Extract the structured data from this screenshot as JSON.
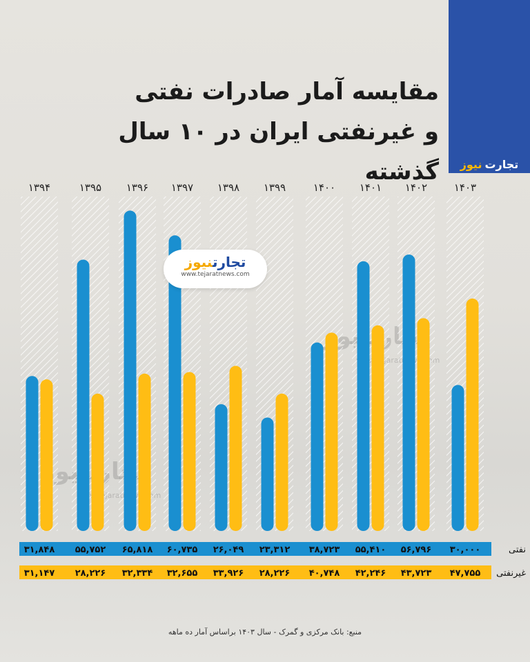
{
  "title_line1": "مقایسه آمار صادرات نفتی",
  "title_line2": "و غیرنفتی ایران در ۱۰ سال گذشته",
  "brand": {
    "part1": "تجارت",
    "part2": "نیوز",
    "url": "www.tejaratnews.com",
    "primary": "#2a52a8",
    "accent": "#ffb800"
  },
  "source": "منبع: بانک مرکزی و گمرک - سال ۱۴۰۳ براساس آمار ده ماهه",
  "chart_data": {
    "type": "bar",
    "categories": [
      "۱۳۹۴",
      "۱۳۹۵",
      "۱۳۹۶",
      "۱۳۹۷",
      "۱۳۹۸",
      "۱۳۹۹",
      "۱۴۰۰",
      "۱۴۰۱",
      "۱۴۰۲",
      "۱۴۰۳"
    ],
    "series": [
      {
        "name": "نفتی",
        "color": "#1a8fd0",
        "values": [
          31848,
          55752,
          65818,
          60735,
          26049,
          23312,
          38723,
          55410,
          56796,
          30000
        ],
        "labels": [
          "۳۱,۸۴۸",
          "۵۵,۷۵۲",
          "۶۵,۸۱۸",
          "۶۰,۷۳۵",
          "۲۶,۰۴۹",
          "۲۳,۳۱۲",
          "۳۸,۷۲۳",
          "۵۵,۴۱۰",
          "۵۶,۷۹۶",
          "۳۰,۰۰۰"
        ]
      },
      {
        "name": "غیرنفتی",
        "color": "#ffbd14",
        "values": [
          31147,
          28226,
          32334,
          32655,
          33926,
          28226,
          40748,
          42246,
          43723,
          47755
        ],
        "labels": [
          "۳۱,۱۴۷",
          "۲۸,۲۲۶",
          "۳۲,۳۳۴",
          "۳۲,۶۵۵",
          "۳۳,۹۲۶",
          "۲۸,۲۲۶",
          "۴۰,۷۴۸",
          "۴۲,۲۴۶",
          "۴۳,۷۲۳",
          "۴۷,۷۵۵"
        ]
      }
    ],
    "grid": false,
    "legend": "row labels at right"
  }
}
